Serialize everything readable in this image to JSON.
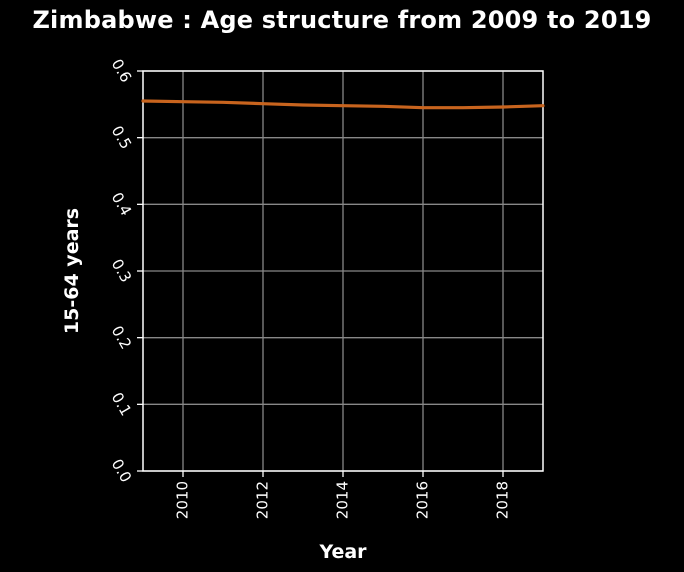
{
  "chart_data": {
    "type": "line",
    "title": "Zimbabwe : Age structure from 2009 to 2019",
    "xlabel": "Year",
    "ylabel": "15-64 years",
    "xlim": [
      2009,
      2019
    ],
    "ylim": [
      0.0,
      0.6
    ],
    "x_ticks": [
      2010,
      2012,
      2014,
      2016,
      2018
    ],
    "x_tick_labels": [
      "2010",
      "2012",
      "2014",
      "2016",
      "2018"
    ],
    "y_ticks": [
      0.0,
      0.1,
      0.2,
      0.3,
      0.4,
      0.5,
      0.6
    ],
    "y_tick_labels": [
      "0.0",
      "0.1",
      "0.2",
      "0.3",
      "0.4",
      "0.5",
      "0.6"
    ],
    "grid": true,
    "series": [
      {
        "color": "#c8641e",
        "x": [
          2009,
          2010,
          2011,
          2012,
          2013,
          2014,
          2015,
          2016,
          2017,
          2018,
          2019
        ],
        "y": [
          0.555,
          0.554,
          0.553,
          0.551,
          0.549,
          0.548,
          0.547,
          0.545,
          0.545,
          0.546,
          0.548
        ]
      }
    ]
  },
  "colors": {
    "background": "#000000",
    "grid": "#888888",
    "text": "#ffffff"
  }
}
